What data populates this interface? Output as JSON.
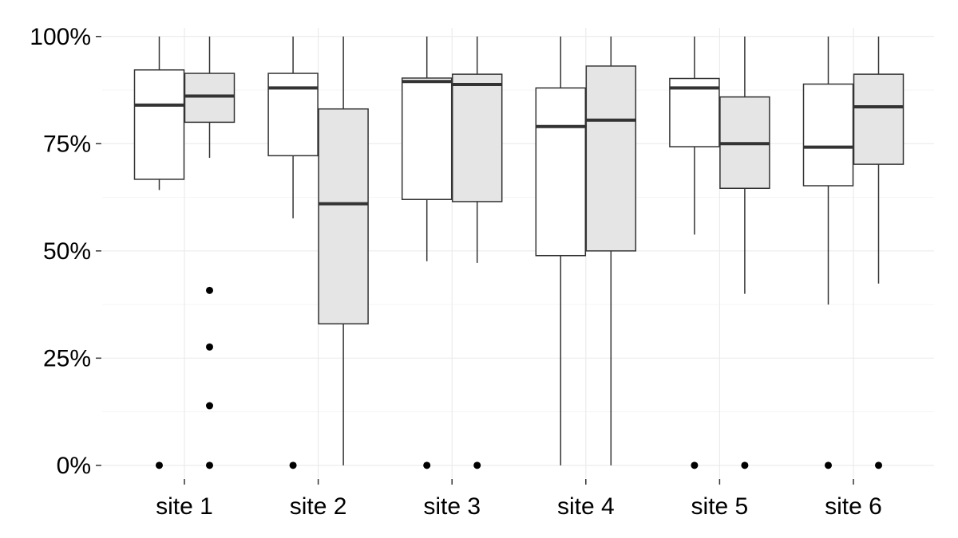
{
  "chart_data": {
    "type": "boxplot",
    "title": "",
    "xlabel": "",
    "ylabel": "",
    "categories": [
      "site 1",
      "site 2",
      "site 3",
      "site 4",
      "site 5",
      "site 6"
    ],
    "y_ticks": [
      "0%",
      "25%",
      "50%",
      "75%",
      "100%"
    ],
    "y_tick_values": [
      0,
      25,
      50,
      75,
      100
    ],
    "ylim": [
      -3,
      102
    ],
    "grid": true,
    "legend": "none",
    "groups_per_category": 2,
    "group_fill": [
      "#ffffff",
      "#e5e5e5"
    ],
    "series": [
      {
        "name": "",
        "fill": "#ffffff",
        "boxes": [
          {
            "category": "site 1",
            "whisker_low": 64.2,
            "q1": 66.7,
            "median": 84.0,
            "q3": 92.2,
            "whisker_high": 100,
            "outliers": [
              0
            ]
          },
          {
            "category": "site 2",
            "whisker_low": 57.6,
            "q1": 72.2,
            "median": 88.0,
            "q3": 91.4,
            "whisker_high": 100,
            "outliers": [
              0
            ]
          },
          {
            "category": "site 3",
            "whisker_low": 47.6,
            "q1": 62.0,
            "median": 89.5,
            "q3": 90.3,
            "whisker_high": 100,
            "outliers": [
              0
            ]
          },
          {
            "category": "site 4",
            "whisker_low": 0,
            "q1": 48.9,
            "median": 79.0,
            "q3": 88.0,
            "whisker_high": 100,
            "outliers": []
          },
          {
            "category": "site 5",
            "whisker_low": 53.8,
            "q1": 74.3,
            "median": 88.0,
            "q3": 90.2,
            "whisker_high": 100,
            "outliers": [
              0
            ]
          },
          {
            "category": "site 6",
            "whisker_low": 37.5,
            "q1": 65.2,
            "median": 74.2,
            "q3": 88.9,
            "whisker_high": 100,
            "outliers": [
              0
            ]
          }
        ]
      },
      {
        "name": "",
        "fill": "#e5e5e5",
        "boxes": [
          {
            "category": "site 1",
            "whisker_low": 71.7,
            "q1": 80.0,
            "median": 86.1,
            "q3": 91.4,
            "whisker_high": 100,
            "outliers": [
              0,
              13.9,
              27.6,
              40.8
            ]
          },
          {
            "category": "site 2",
            "whisker_low": 0,
            "q1": 33.0,
            "median": 61.0,
            "q3": 83.1,
            "whisker_high": 100,
            "outliers": []
          },
          {
            "category": "site 3",
            "whisker_low": 47.2,
            "q1": 61.5,
            "median": 88.8,
            "q3": 91.2,
            "whisker_high": 100,
            "outliers": [
              0
            ]
          },
          {
            "category": "site 4",
            "whisker_low": 0,
            "q1": 50.0,
            "median": 80.5,
            "q3": 93.1,
            "whisker_high": 100,
            "outliers": []
          },
          {
            "category": "site 5",
            "whisker_low": 40.0,
            "q1": 64.6,
            "median": 75.0,
            "q3": 85.9,
            "whisker_high": 100,
            "outliers": [
              0
            ]
          },
          {
            "category": "site 6",
            "whisker_low": 42.4,
            "q1": 70.2,
            "median": 83.6,
            "q3": 91.2,
            "whisker_high": 100,
            "outliers": [
              0
            ]
          }
        ]
      }
    ]
  }
}
